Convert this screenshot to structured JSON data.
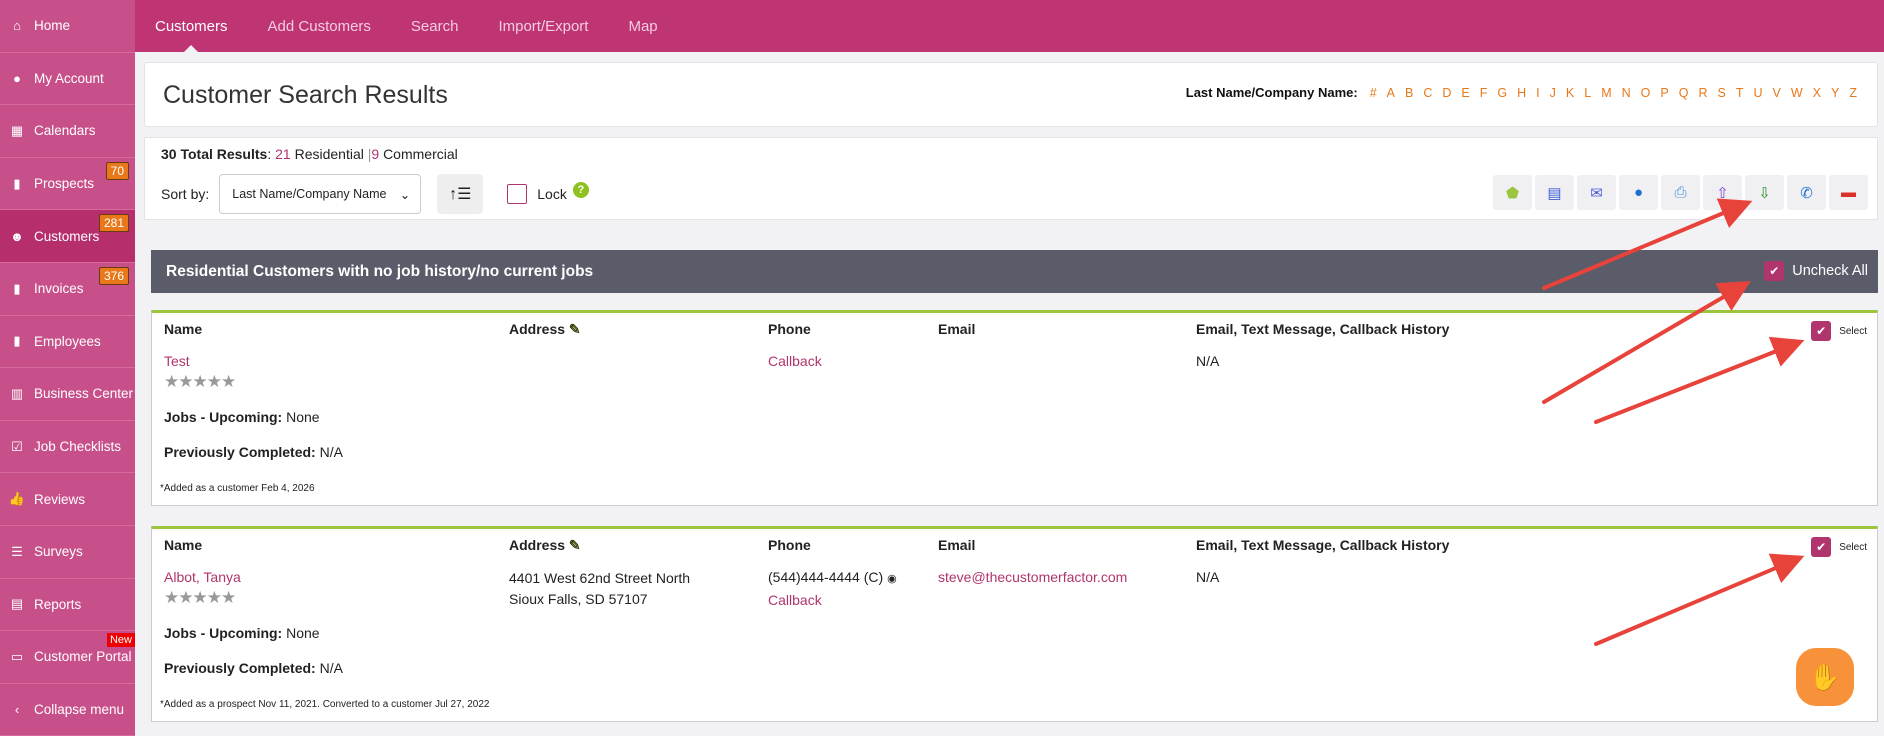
{
  "sidebar": {
    "items": [
      {
        "label": "Home",
        "icon": "home-icon",
        "glyph": "⌂"
      },
      {
        "label": "My Account",
        "icon": "user-circle-icon",
        "glyph": "●"
      },
      {
        "label": "Calendars",
        "icon": "calendar-icon",
        "glyph": "▦"
      },
      {
        "label": "Prospects",
        "icon": "file-icon",
        "glyph": "▮",
        "badge": "70"
      },
      {
        "label": "Customers",
        "icon": "users-icon",
        "glyph": "☻",
        "badge": "281",
        "active": true
      },
      {
        "label": "Invoices",
        "icon": "file-icon",
        "glyph": "▮",
        "badge": "376"
      },
      {
        "label": "Employees",
        "icon": "file-icon",
        "glyph": "▮"
      },
      {
        "label": "Business Center",
        "icon": "building-icon",
        "glyph": "▥"
      },
      {
        "label": "Job Checklists",
        "icon": "checkbox-icon",
        "glyph": "☑"
      },
      {
        "label": "Reviews",
        "icon": "thumbs-up-icon",
        "glyph": "👍"
      },
      {
        "label": "Surveys",
        "icon": "list-check-icon",
        "glyph": "☰"
      },
      {
        "label": "Reports",
        "icon": "clipboard-icon",
        "glyph": "▤"
      },
      {
        "label": "Customer Portal",
        "icon": "laptop-icon",
        "glyph": "▭",
        "new": "New"
      },
      {
        "label": "Collapse menu",
        "icon": "chevron-left-icon",
        "glyph": "‹"
      }
    ]
  },
  "topnav": {
    "tabs": [
      "Customers",
      "Add Customers",
      "Search",
      "Import/Export",
      "Map"
    ]
  },
  "header": {
    "title": "Customer Search Results",
    "alpha_label": "Last Name/Company Name:",
    "letters": [
      "#",
      "A",
      "B",
      "C",
      "D",
      "E",
      "F",
      "G",
      "H",
      "I",
      "J",
      "K",
      "L",
      "M",
      "N",
      "O",
      "P",
      "Q",
      "R",
      "S",
      "T",
      "U",
      "V",
      "W",
      "X",
      "Y",
      "Z"
    ]
  },
  "toolbar": {
    "total": "30 Total Results",
    "residential_count": "21",
    "residential_label": "Residential",
    "commercial_count": "9",
    "commercial_label": "Commercial",
    "sort_label": "Sort by:",
    "sort_value": "Last Name/Company Name",
    "lock_label": "Lock",
    "actions": [
      {
        "name": "tag",
        "glyph": "⬟",
        "color": "#9bc53d"
      },
      {
        "name": "clipboard",
        "glyph": "▤",
        "color": "#3b5bdb"
      },
      {
        "name": "envelope",
        "glyph": "✉",
        "color": "#4c5be0"
      },
      {
        "name": "comment",
        "glyph": "●",
        "color": "#1c6fd1"
      },
      {
        "name": "print",
        "glyph": "⎙",
        "color": "#4a8fe0"
      },
      {
        "name": "upload",
        "glyph": "⇧",
        "color": "#7b3fd6"
      },
      {
        "name": "download",
        "glyph": "⇩",
        "color": "#2d8a2d"
      },
      {
        "name": "phone",
        "glyph": "✆",
        "color": "#1c6fd1"
      },
      {
        "name": "trash",
        "glyph": "▬",
        "color": "#d9302c"
      }
    ]
  },
  "section": {
    "title": "Residential Customers with no job history/no current jobs",
    "uncheck_all": "Uncheck All"
  },
  "columns": {
    "name": "Name",
    "address": "Address",
    "phone": "Phone",
    "email": "Email",
    "history": "Email, Text Message, Callback History",
    "select": "Select"
  },
  "labels": {
    "jobs_upcoming": "Jobs - Upcoming:",
    "previously_completed": "Previously Completed:"
  },
  "customers": [
    {
      "name": "Test",
      "rating": 0,
      "address1": "",
      "address2": "",
      "phone": "",
      "callback": "Callback",
      "email": "",
      "history": "N/A",
      "jobs_upcoming": "None",
      "previously_completed": "N/A",
      "note": "*Added as a customer Feb 4, 2026",
      "selected": true
    },
    {
      "name": "Albot, Tanya",
      "rating": 0,
      "address1": "4401 West 62nd Street North",
      "address2": "Sioux Falls, SD 57107",
      "phone": "(544)444-4444 (C)",
      "callback": "Callback",
      "email": "steve@thecustomerfactor.com",
      "history": "N/A",
      "jobs_upcoming": "None",
      "previously_completed": "N/A",
      "note": "*Added as a prospect Nov 11, 2021. Converted to a customer Jul 27, 2022",
      "selected": true
    }
  ],
  "colors": {
    "brand": "#bf3473",
    "accent_orange": "#e8781a",
    "card_border": "#9bc53d",
    "annotation_arrow": "#e8433b"
  }
}
